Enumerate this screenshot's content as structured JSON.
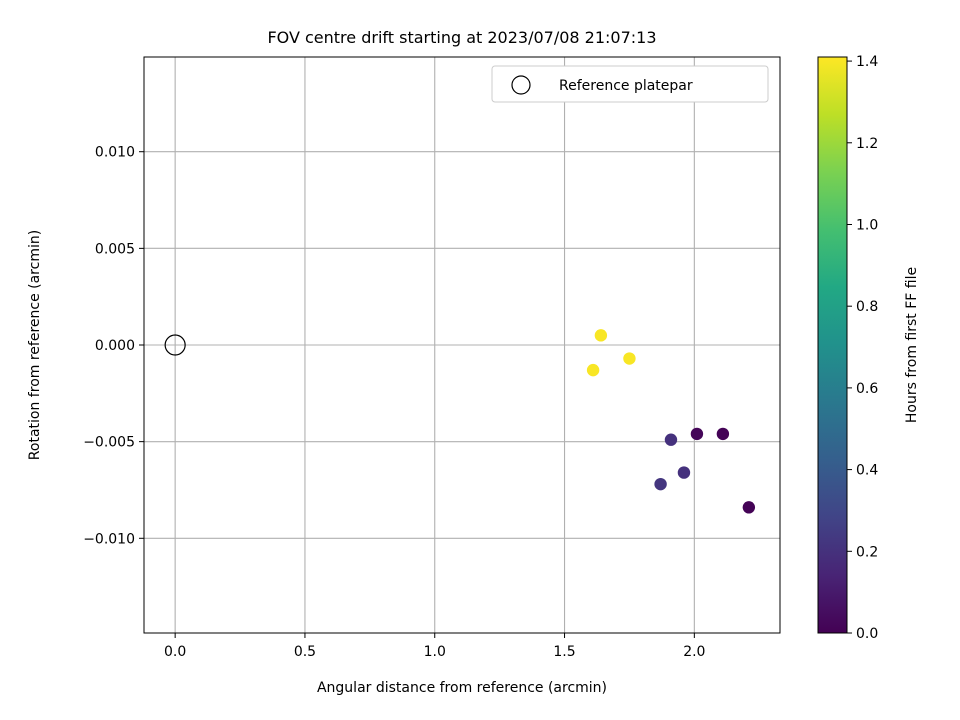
{
  "chart_data": {
    "type": "scatter",
    "title": "FOV centre drift starting at 2023/07/08 21:07:13",
    "xlabel": "Angular distance from reference (arcmin)",
    "ylabel": "Rotation from reference (arcmin)",
    "xlim": [
      -0.12,
      2.33
    ],
    "ylim": [
      -0.0149,
      0.0149
    ],
    "x_ticks": [
      0.0,
      0.5,
      1.0,
      1.5,
      2.0
    ],
    "x_tick_labels": [
      "0.0",
      "0.5",
      "1.0",
      "1.5",
      "2.0"
    ],
    "y_ticks": [
      0.01,
      0.005,
      0.0,
      -0.005,
      -0.01
    ],
    "y_tick_labels": [
      "0.010",
      "0.005",
      "0.000",
      "−0.005",
      "−0.010"
    ],
    "grid": true,
    "legend_position": "top-right",
    "reference": {
      "label": "Reference platepar",
      "x": 0.0,
      "y": 0.0
    },
    "series": [
      {
        "points": [
          {
            "x": 1.61,
            "y": -0.0013,
            "hours": 1.4
          },
          {
            "x": 1.64,
            "y": 0.0005,
            "hours": 1.4
          },
          {
            "x": 1.75,
            "y": -0.0007,
            "hours": 1.4
          },
          {
            "x": 1.87,
            "y": -0.0072,
            "hours": 0.22
          },
          {
            "x": 1.91,
            "y": -0.0049,
            "hours": 0.2
          },
          {
            "x": 1.96,
            "y": -0.0066,
            "hours": 0.2
          },
          {
            "x": 2.01,
            "y": -0.0046,
            "hours": 0.02
          },
          {
            "x": 2.11,
            "y": -0.0046,
            "hours": 0.01
          },
          {
            "x": 2.21,
            "y": -0.0084,
            "hours": 0.01
          }
        ]
      }
    ],
    "colorbar": {
      "label": "Hours from first FF file",
      "colormap": "viridis",
      "range": [
        0.0,
        1.41
      ],
      "ticks": [
        0.0,
        0.2,
        0.4,
        0.6,
        0.8,
        1.0,
        1.2,
        1.4
      ],
      "tick_labels": [
        "0.0",
        "0.2",
        "0.4",
        "0.6",
        "0.8",
        "1.0",
        "1.2",
        "1.4"
      ]
    }
  }
}
